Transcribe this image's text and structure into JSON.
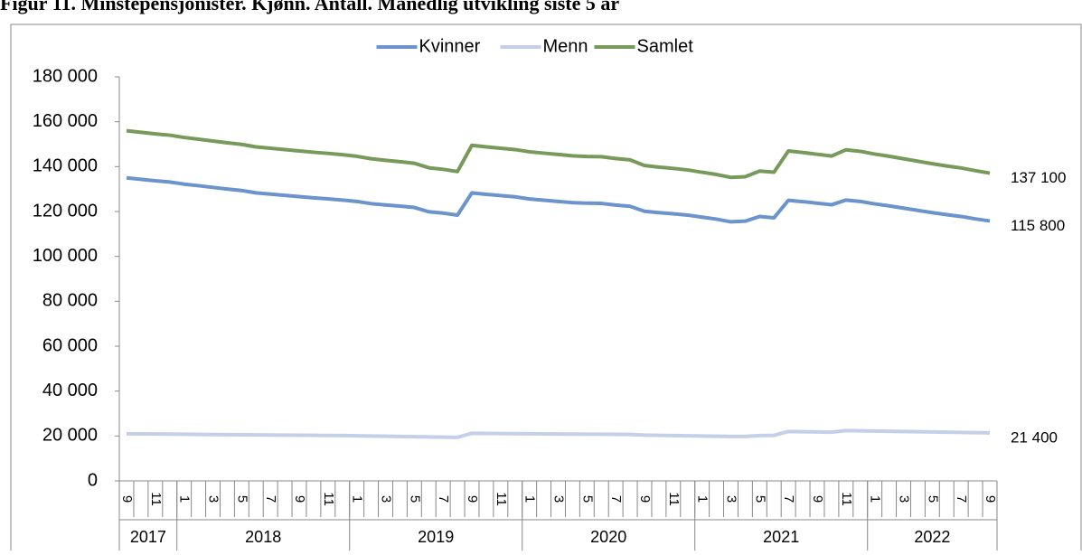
{
  "chart_data": {
    "type": "line",
    "title": "Figur 11. Minstepensjonister. Kjønn. Antall. Månedlig utvikling siste 5 år",
    "categories": [
      "9",
      null,
      "11",
      null,
      "1",
      null,
      "3",
      null,
      "5",
      null,
      "7",
      null,
      "9",
      null,
      "11",
      null,
      "1",
      null,
      "3",
      null,
      "5",
      null,
      "7",
      null,
      "9",
      null,
      "11",
      null,
      "1",
      null,
      "3",
      null,
      "5",
      null,
      "7",
      null,
      "9",
      null,
      "11",
      null,
      "1",
      null,
      "3",
      null,
      "5",
      null,
      "7",
      null,
      "9",
      null,
      "11",
      null,
      "1",
      null,
      "3",
      null,
      "5",
      null,
      "7",
      null,
      "9"
    ],
    "category_groups": [
      "2017",
      null,
      null,
      null,
      "2018",
      null,
      null,
      null,
      null,
      null,
      null,
      null,
      null,
      null,
      null,
      null,
      "2019",
      null,
      null,
      null,
      null,
      null,
      null,
      null,
      null,
      null,
      null,
      null,
      "2020",
      null,
      null,
      null,
      null,
      null,
      null,
      null,
      null,
      null,
      null,
      null,
      "2021",
      null,
      null,
      null,
      null,
      null,
      null,
      null,
      null,
      null,
      null,
      null,
      "2022",
      null,
      null,
      null,
      null,
      null,
      null,
      null,
      null
    ],
    "series": [
      {
        "name": "Kvinner",
        "color": "#6b93cc",
        "values": [
          135000,
          134350,
          133700,
          133150,
          132200,
          131500,
          130750,
          130000,
          129350,
          128300,
          127750,
          127200,
          126650,
          126100,
          125650,
          125100,
          124500,
          123500,
          122900,
          122400,
          121800,
          119900,
          119300,
          118400,
          128300,
          127650,
          127100,
          126550,
          125600,
          125050,
          124500,
          123950,
          123700,
          123600,
          122850,
          122300,
          120100,
          119500,
          119000,
          118400,
          117500,
          116600,
          115400,
          115700,
          117800,
          117200,
          125000,
          124400,
          123700,
          123000,
          125100,
          124500,
          123400,
          122500,
          121500,
          120500,
          119500,
          118600,
          117800,
          116700,
          115800
        ],
        "value_labels": [
          null,
          null,
          null,
          null,
          null,
          null,
          null,
          null,
          null,
          null,
          null,
          null,
          null,
          null,
          null,
          null,
          null,
          null,
          null,
          null,
          null,
          null,
          null,
          null,
          null,
          null,
          null,
          null,
          null,
          null,
          null,
          null,
          null,
          null,
          null,
          null,
          null,
          null,
          null,
          null,
          null,
          null,
          null,
          null,
          null,
          null,
          null,
          null,
          null,
          null,
          null,
          null,
          null,
          null,
          null,
          null,
          null,
          null,
          null,
          null,
          "115 800"
        ]
      },
      {
        "name": "Menn",
        "color": "#c4cfe9",
        "values": [
          21000,
          20950,
          20900,
          20850,
          20800,
          20700,
          20650,
          20600,
          20550,
          20500,
          20450,
          20400,
          20350,
          20300,
          20250,
          20200,
          20100,
          20000,
          19900,
          19800,
          19700,
          19600,
          19500,
          19400,
          21200,
          21150,
          21100,
          21050,
          21000,
          20950,
          20900,
          20850,
          20800,
          20800,
          20750,
          20700,
          20400,
          20300,
          20200,
          20100,
          20000,
          19900,
          19800,
          19800,
          20200,
          20300,
          22000,
          21900,
          21800,
          21700,
          22400,
          22300,
          22200,
          22100,
          22000,
          21900,
          21800,
          21700,
          21600,
          21500,
          21400
        ],
        "value_labels": [
          null,
          null,
          null,
          null,
          null,
          null,
          null,
          null,
          null,
          null,
          null,
          null,
          null,
          null,
          null,
          null,
          null,
          null,
          null,
          null,
          null,
          null,
          null,
          null,
          null,
          null,
          null,
          null,
          null,
          null,
          null,
          null,
          null,
          null,
          null,
          null,
          null,
          null,
          null,
          null,
          null,
          null,
          null,
          null,
          null,
          null,
          null,
          null,
          null,
          null,
          null,
          null,
          null,
          null,
          null,
          null,
          null,
          null,
          null,
          null,
          "21 400"
        ]
      },
      {
        "name": "Samlet",
        "color": "#77995a",
        "values": [
          156000,
          155300,
          154600,
          154000,
          153000,
          152200,
          151400,
          150600,
          149900,
          148800,
          148200,
          147600,
          147000,
          146400,
          145900,
          145300,
          144600,
          143500,
          142800,
          142200,
          141500,
          139500,
          138800,
          137800,
          149500,
          148800,
          148200,
          147600,
          146600,
          146000,
          145400,
          144800,
          144500,
          144400,
          143600,
          143000,
          140500,
          139800,
          139200,
          138500,
          137500,
          136500,
          135200,
          135500,
          138000,
          137500,
          147000,
          146300,
          145500,
          144700,
          147500,
          146800,
          145600,
          144600,
          143500,
          142400,
          141300,
          140300,
          139400,
          138200,
          137100
        ],
        "value_labels": [
          null,
          null,
          null,
          null,
          null,
          null,
          null,
          null,
          null,
          null,
          null,
          null,
          null,
          null,
          null,
          null,
          null,
          null,
          null,
          null,
          null,
          null,
          null,
          null,
          null,
          null,
          null,
          null,
          null,
          null,
          null,
          null,
          null,
          null,
          null,
          null,
          null,
          null,
          null,
          null,
          null,
          null,
          null,
          null,
          null,
          null,
          null,
          null,
          null,
          null,
          null,
          null,
          null,
          null,
          null,
          null,
          null,
          null,
          null,
          null,
          "137 100"
        ]
      }
    ],
    "ylim": [
      0,
      180000
    ],
    "yticks": [
      0,
      {
        "value": 20000,
        "label": "20 000"
      },
      {
        "value": 40000,
        "label": "40 000"
      },
      {
        "value": 60000,
        "label": "60 000"
      },
      {
        "value": 80000,
        "label": "80 000"
      },
      {
        "value": 100000,
        "label": "100 000"
      },
      {
        "value": 120000,
        "label": "120 000"
      },
      {
        "value": 140000,
        "label": "140 000"
      },
      {
        "value": 160000,
        "label": "160 000"
      },
      {
        "value": 180000,
        "label": "180 000"
      }
    ],
    "legend": "top",
    "grid": false
  }
}
